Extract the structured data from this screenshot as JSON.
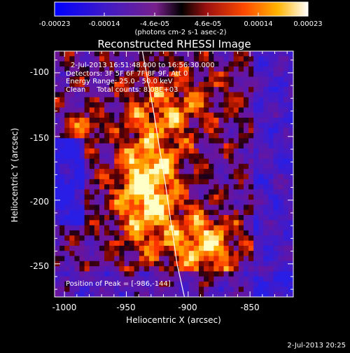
{
  "colorbar": {
    "ticks": [
      "-0.00023",
      "-0.00014",
      "-4.6e-05",
      "4.6e-05",
      "0.00014",
      "0.00023"
    ],
    "unit": "(photons cm-2 s-1 asec-2)",
    "range": [
      -0.00023,
      0.00023
    ]
  },
  "chart_data": {
    "type": "heatmap",
    "title": "Reconstructed RHESSI Image",
    "xlabel": "Heliocentric X (arcsec)",
    "ylabel": "Heliocentric Y (arcsec)",
    "xlim": [
      -1008,
      -815
    ],
    "ylim": [
      -276,
      -83
    ],
    "x_ticks": [
      "-1000",
      "-950",
      "-900",
      "-850"
    ],
    "y_ticks": [
      "-100",
      "-150",
      "-200",
      "-250"
    ],
    "annotations": [
      "2-Jul-2013 16:51:48.000 to 16:56:30.000",
      "Detectors: 3F 5F 6F 7F 8F 9F, Att 0",
      "Energy Range: 25.0 - 50.0 keV",
      "Clean     Total counts: 8.08E+03"
    ],
    "peak_label": "Position of Peak = [-986,-144]",
    "peak_position": [
      -986,
      -144
    ],
    "limb_curve": {
      "x": [
        -937,
        -928,
        -918,
        -909,
        -903
      ],
      "y": [
        -83,
        -130,
        -190,
        -250,
        -276
      ]
    }
  },
  "footer": {
    "timestamp": "2-Jul-2013 20:25"
  }
}
